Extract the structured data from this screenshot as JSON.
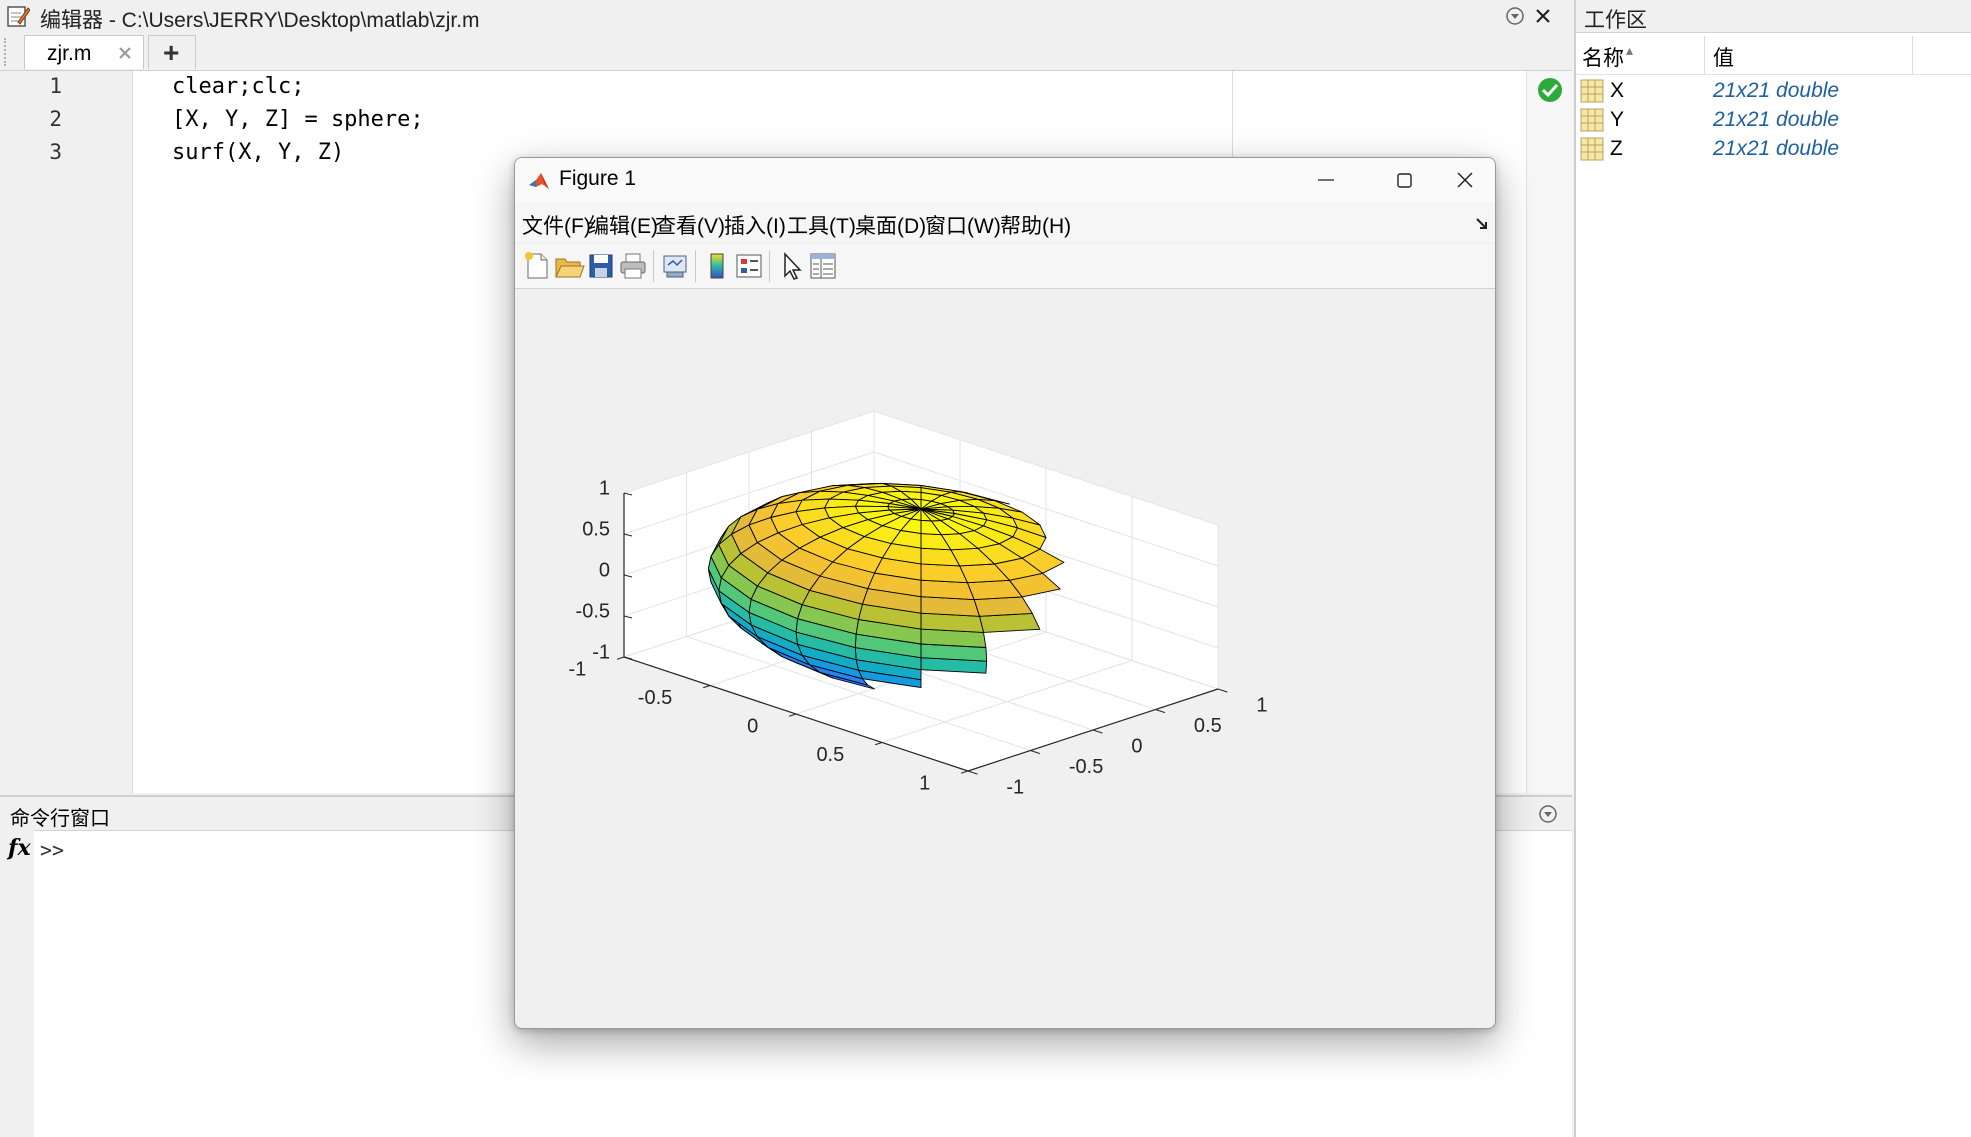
{
  "editor": {
    "window_title": "编辑器 - C:\\Users\\JERRY\\Desktop\\matlab\\zjr.m",
    "tab_label": "zjr.m",
    "new_tab_label": "+",
    "lines": [
      {
        "num": "1",
        "code": "clear;clc;"
      },
      {
        "num": "2",
        "code": "[X, Y, Z] = sphere;"
      },
      {
        "num": "3",
        "code": "surf(X, Y, Z)"
      }
    ],
    "status_color": "#2eaa3a"
  },
  "workspace": {
    "title": "工作区",
    "col_name": "名称",
    "sort_indicator": "▴",
    "col_value": "值",
    "variables": [
      {
        "name": "X",
        "value": "21x21 double"
      },
      {
        "name": "Y",
        "value": "21x21 double"
      },
      {
        "name": "Z",
        "value": "21x21 double"
      }
    ]
  },
  "command_window": {
    "title": "命令行窗口",
    "fx_label": "fx",
    "prompt": ">>"
  },
  "figure": {
    "title": "Figure 1",
    "menus": [
      "文件(F)",
      "编辑(E)",
      "查看(V)",
      "插入(I)",
      "工具(T)",
      "桌面(D)",
      "窗口(W)",
      "帮助(H)"
    ],
    "toolbar_icons": [
      "new-figure-icon",
      "open-icon",
      "save-icon",
      "print-icon",
      "link-plot-icon",
      "colorbar-icon",
      "legend-icon",
      "edit-plot-icon",
      "property-inspector-icon"
    ]
  },
  "chart_data": {
    "type": "surface",
    "function": "sphere",
    "resolution": 20,
    "colormap": "parula",
    "x_range": [
      -1,
      1
    ],
    "y_range": [
      -1,
      1
    ],
    "z_range": [
      -1,
      1
    ],
    "x_ticks": [
      "-1",
      "-0.5",
      "0",
      "0.5",
      "1"
    ],
    "y_ticks": [
      "-1",
      "-0.5",
      "0",
      "0.5",
      "1"
    ],
    "z_ticks": [
      "-1",
      "-0.5",
      "0",
      "0.5",
      "1"
    ],
    "view": {
      "azimuth": -37.5,
      "elevation": 30
    },
    "grid": true,
    "box": true
  }
}
